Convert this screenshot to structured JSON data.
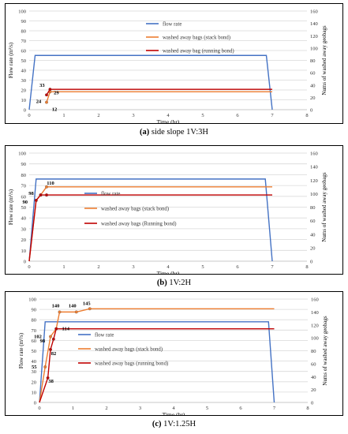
{
  "chart_data": [
    {
      "type": "line",
      "caption_label": "(a)",
      "caption_text": "side slope 1V:3H",
      "xlabel": "Time (hr)",
      "ylabel": "Flow rate (m³/s)",
      "y2label": "Nums of washed away geobags",
      "xlim": [
        0,
        8
      ],
      "ylim": [
        0,
        100
      ],
      "y2lim": [
        0,
        160
      ],
      "xticks": [
        0,
        1,
        2,
        3,
        4,
        5,
        6,
        7,
        8
      ],
      "yticks": [
        0,
        10,
        20,
        30,
        40,
        50,
        60,
        70,
        80,
        90,
        100
      ],
      "y2ticks": [
        0,
        20,
        40,
        60,
        80,
        100,
        120,
        140,
        160
      ],
      "legend_position": "top-right",
      "series": [
        {
          "name": "flow rate",
          "color": "#4472c4",
          "axis": "left",
          "x": [
            0,
            0.17,
            6.83,
            7
          ],
          "y": [
            0,
            55,
            55,
            0
          ]
        },
        {
          "name": "washed away bags (stack bond)",
          "color": "#ed7d31",
          "axis": "right",
          "x": [
            0.5,
            0.6,
            7
          ],
          "y": [
            12,
            29,
            29
          ],
          "markers": true
        },
        {
          "name": "washed away bag (running bond)",
          "color": "#c00000",
          "axis": "right",
          "x": [
            0.5,
            0.6,
            7
          ],
          "y": [
            24,
            33,
            33
          ],
          "markers": true
        }
      ],
      "data_labels": [
        {
          "text": "33",
          "x": 0.6,
          "y": 33,
          "axis": "right"
        },
        {
          "text": "29",
          "x": 0.6,
          "y": 29,
          "axis": "right"
        },
        {
          "text": "24",
          "x": 0.5,
          "y": 24,
          "axis": "right"
        },
        {
          "text": "12",
          "x": 0.5,
          "y": 12,
          "axis": "right"
        }
      ]
    },
    {
      "type": "line",
      "caption_label": "(b)",
      "caption_text": "1V:2H",
      "xlabel": "Time (hr)",
      "ylabel": "Flow rate (m³/s)",
      "y2label": "Nums of washed away geobags",
      "xlim": [
        0,
        8
      ],
      "ylim": [
        0,
        100
      ],
      "y2lim": [
        0,
        160
      ],
      "xticks": [
        0,
        1,
        2,
        3,
        4,
        5,
        6,
        7,
        8
      ],
      "yticks": [
        0,
        10,
        20,
        30,
        40,
        50,
        60,
        70,
        80,
        90,
        100
      ],
      "y2ticks": [
        0,
        20,
        40,
        60,
        80,
        100,
        120,
        140,
        160
      ],
      "legend_position": "center-left",
      "series": [
        {
          "name": "flow rate",
          "color": "#4472c4",
          "axis": "left",
          "x": [
            0,
            0.2,
            6.8,
            7
          ],
          "y": [
            0,
            76,
            76,
            0
          ]
        },
        {
          "name": "washed away bags (stack bond)",
          "color": "#ed7d31",
          "axis": "right",
          "x": [
            0,
            0.2,
            0.33,
            0.5,
            7
          ],
          "y": [
            0,
            90,
            98,
            110,
            110
          ],
          "markers": true
        },
        {
          "name": "washed away bags (Running bond)",
          "color": "#c00000",
          "axis": "right",
          "x": [
            0,
            0.2,
            0.33,
            0.5,
            7
          ],
          "y": [
            0,
            90,
            98,
            98,
            98
          ],
          "markers": true
        }
      ],
      "data_labels": [
        {
          "text": "110",
          "x": 0.5,
          "y": 110,
          "axis": "right"
        },
        {
          "text": "98",
          "x": 0.33,
          "y": 98,
          "axis": "right"
        },
        {
          "text": "90",
          "x": 0.2,
          "y": 90,
          "axis": "right"
        }
      ]
    },
    {
      "type": "line",
      "caption_label": "(c)",
      "caption_text": "1V:1.25H",
      "xlabel": "Time (hr)",
      "ylabel": "Flow rate (m³/s)",
      "y2label": "Nums of washed away geobags",
      "xlim": [
        0,
        8
      ],
      "ylim": [
        0,
        100
      ],
      "y2lim": [
        0,
        160
      ],
      "xticks": [
        0,
        1,
        2,
        3,
        4,
        5,
        6,
        7,
        8
      ],
      "yticks": [
        0,
        10,
        20,
        30,
        40,
        50,
        60,
        70,
        80,
        90,
        100
      ],
      "y2ticks": [
        0,
        20,
        40,
        60,
        80,
        100,
        120,
        140,
        160
      ],
      "legend_position": "center-left",
      "series": [
        {
          "name": "flow rate",
          "color": "#4472c4",
          "axis": "left",
          "x": [
            0,
            0.17,
            6.83,
            7
          ],
          "y": [
            0,
            78,
            78,
            0
          ]
        },
        {
          "name": "washed away bags (stack bond)",
          "color": "#ed7d31",
          "axis": "right",
          "x": [
            0,
            0.17,
            0.33,
            0.5,
            0.6,
            1.1,
            1.5,
            7
          ],
          "y": [
            0,
            55,
            102,
            114,
            140,
            140,
            145,
            145
          ],
          "markers": true
        },
        {
          "name": "washed away bags (running bond)",
          "color": "#c00000",
          "axis": "right",
          "x": [
            0,
            0.25,
            0.33,
            0.42,
            0.5,
            7
          ],
          "y": [
            0,
            38,
            82,
            98,
            114,
            114
          ],
          "markers": true
        }
      ],
      "data_labels": [
        {
          "text": "140",
          "x": 0.6,
          "y": 140,
          "axis": "right"
        },
        {
          "text": "140",
          "x": 1.1,
          "y": 140,
          "axis": "right"
        },
        {
          "text": "145",
          "x": 1.5,
          "y": 145,
          "axis": "right"
        },
        {
          "text": "114",
          "x": 0.5,
          "y": 114,
          "axis": "right"
        },
        {
          "text": "102",
          "x": 0.33,
          "y": 102,
          "axis": "right"
        },
        {
          "text": "98",
          "x": 0.42,
          "y": 98,
          "axis": "right"
        },
        {
          "text": "82",
          "x": 0.33,
          "y": 82,
          "axis": "right"
        },
        {
          "text": "55",
          "x": 0.17,
          "y": 55,
          "axis": "right"
        },
        {
          "text": "38",
          "x": 0.25,
          "y": 38,
          "axis": "right"
        }
      ]
    }
  ]
}
